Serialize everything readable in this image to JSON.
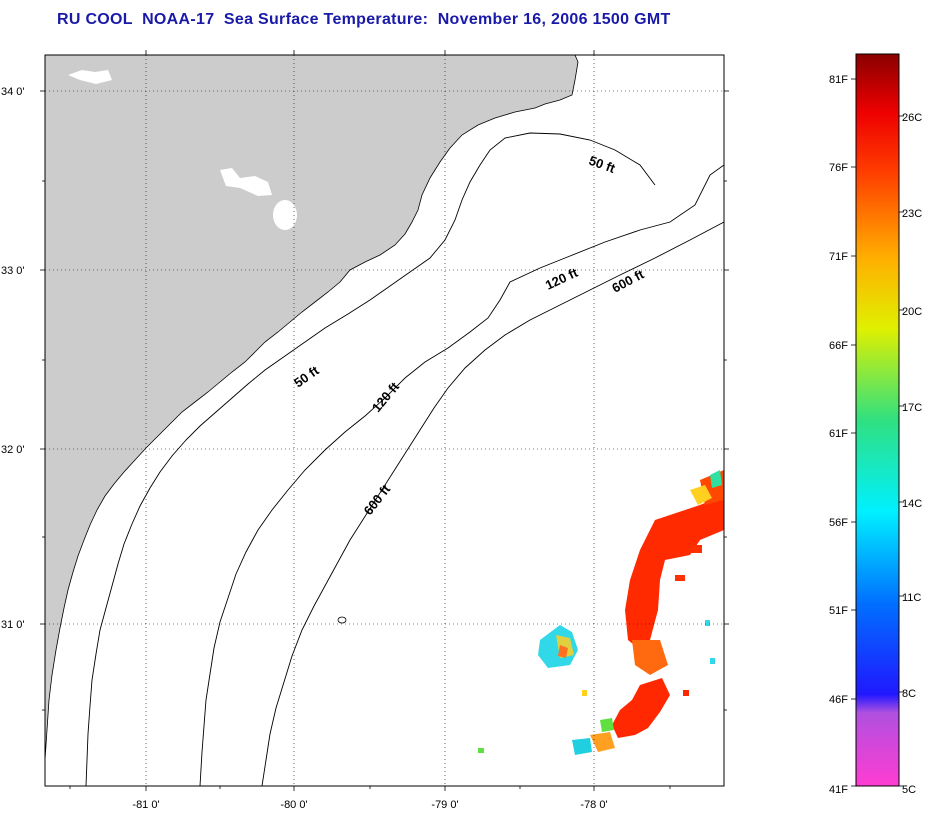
{
  "title": "RU COOL  NOAA-17  Sea Surface Temperature:  November 16, 2006 1500 GMT",
  "map": {
    "lat_labels": [
      "34 0'",
      "33 0'",
      "32 0'",
      "31 0'"
    ],
    "lon_labels": [
      "-81 0'",
      "-80 0'",
      "-79 0'",
      "-78 0'"
    ],
    "contour_labels": [
      "50 ft",
      "120 ft",
      "600 ft",
      "50 ft",
      "120 ft",
      "600 ft"
    ],
    "colors": {
      "land": "#cccccc",
      "ocean": "#ffffff"
    }
  },
  "colorbar": {
    "fahrenheit": [
      "81F",
      "76F",
      "71F",
      "66F",
      "61F",
      "56F",
      "51F",
      "46F",
      "41F"
    ],
    "celsius": [
      "26C",
      "23C",
      "20C",
      "17C",
      "14C",
      "11C",
      "8C",
      "5C"
    ]
  }
}
